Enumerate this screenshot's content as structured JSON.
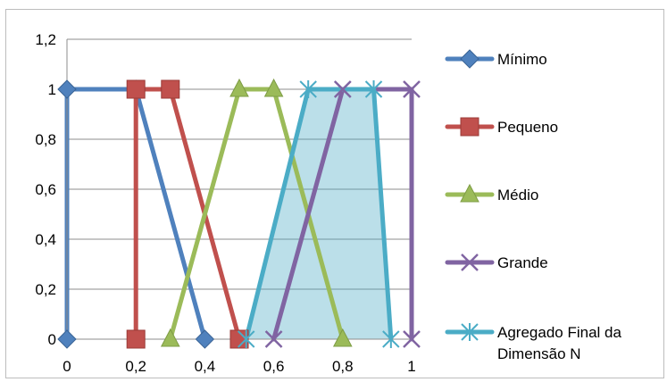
{
  "chart_data": {
    "type": "line",
    "title": "",
    "xlabel": "",
    "ylabel": "",
    "xlim": [
      0,
      1
    ],
    "ylim": [
      0,
      1.2
    ],
    "x_ticks": [
      "0",
      "0,2",
      "0,4",
      "0,6",
      "0,8",
      "1"
    ],
    "y_ticks": [
      "0",
      "0,2",
      "0,4",
      "0,6",
      "0,8",
      "1",
      "1,2"
    ],
    "grid": "horizontal",
    "legend_position": "right",
    "series": [
      {
        "name": "Mínimo",
        "color": "#4f81bd",
        "marker": "diamond",
        "points": [
          [
            0,
            0
          ],
          [
            0,
            1
          ],
          [
            0.2,
            1
          ],
          [
            0.4,
            0
          ]
        ]
      },
      {
        "name": "Pequeno",
        "color": "#c0504d",
        "marker": "square",
        "points": [
          [
            0.2,
            0
          ],
          [
            0.2,
            1
          ],
          [
            0.3,
            1
          ],
          [
            0.5,
            0
          ]
        ]
      },
      {
        "name": "Médio",
        "color": "#9bbb59",
        "marker": "triangle",
        "points": [
          [
            0.3,
            0
          ],
          [
            0.5,
            1
          ],
          [
            0.6,
            1
          ],
          [
            0.8,
            0
          ]
        ]
      },
      {
        "name": "Grande",
        "color": "#8064a2",
        "marker": "x",
        "points": [
          [
            0.6,
            0
          ],
          [
            0.8,
            1
          ],
          [
            1.0,
            1
          ],
          [
            1.0,
            0
          ]
        ]
      },
      {
        "name": "Agregado Final da Dimensão N",
        "color": "#4bacc6",
        "marker": "star",
        "fill": true,
        "points": [
          [
            0.52,
            0
          ],
          [
            0.7,
            1
          ],
          [
            0.89,
            1
          ],
          [
            0.94,
            0
          ]
        ]
      }
    ]
  }
}
